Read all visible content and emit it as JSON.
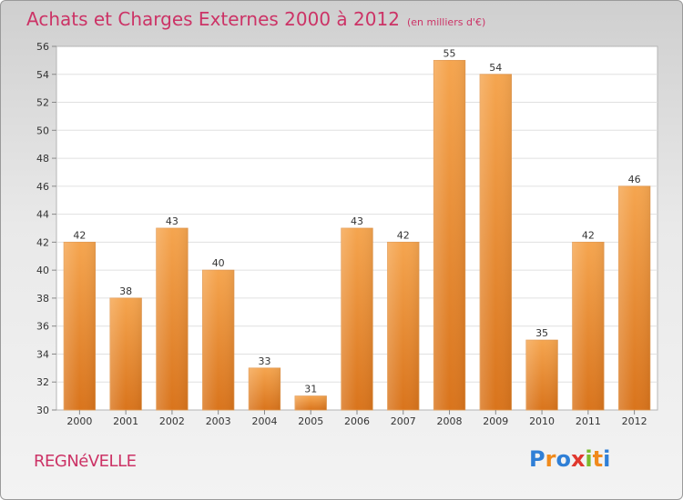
{
  "chart_data": {
    "type": "bar",
    "title": "Achats et Charges Externes 2000 à 2012",
    "subtitle": "(en milliers d'€)",
    "categories": [
      "2000",
      "2001",
      "2002",
      "2003",
      "2004",
      "2005",
      "2006",
      "2007",
      "2008",
      "2009",
      "2010",
      "2011",
      "2012"
    ],
    "values": [
      42,
      38,
      43,
      40,
      33,
      31,
      43,
      42,
      55,
      54,
      35,
      42,
      46
    ],
    "ylim": [
      30,
      56
    ],
    "yticks": [
      30,
      32,
      34,
      36,
      38,
      40,
      42,
      44,
      46,
      48,
      50,
      52,
      54,
      56
    ],
    "grid": true,
    "bar_color_top": "#f5a54f",
    "bar_color_bottom": "#d9741c"
  },
  "footer": {
    "commune": "REGNéVELLE",
    "logo": "Proxiti",
    "logo_colors": [
      "#2f7fd6",
      "#f08a1c",
      "#2f7fd6",
      "#e0382e",
      "#7bbb2c",
      "#f08a1c",
      "#2f7fd6"
    ]
  }
}
